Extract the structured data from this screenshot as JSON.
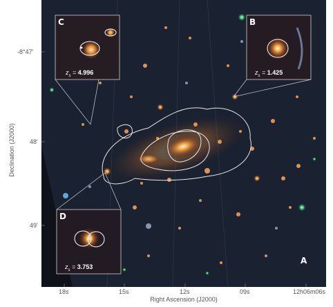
{
  "figure": {
    "panel_letter": "A",
    "axes": {
      "ylabel": "Declination (J2000)",
      "xlabel": "Right Ascension (J2000)",
      "yticks": [
        "-8°47'",
        "48'",
        "49'"
      ],
      "xticks": [
        "18s",
        "15s",
        "12s",
        "09s",
        "12h06m06s"
      ]
    },
    "insets": [
      {
        "letter": "C",
        "z_label": "z",
        "z_value": "4.996"
      },
      {
        "letter": "B",
        "z_label": "z",
        "z_value": "1.425"
      },
      {
        "letter": "D",
        "z_label": "z",
        "z_value": "3.753"
      }
    ]
  }
}
